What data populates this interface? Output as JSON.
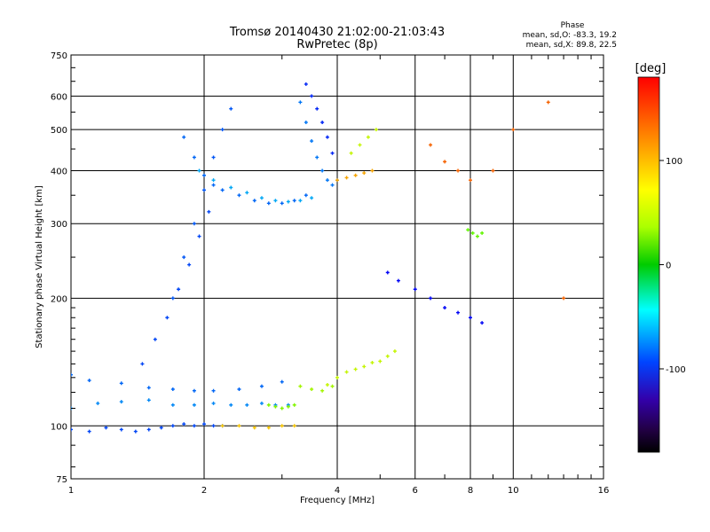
{
  "chart_data": {
    "type": "scatter",
    "title": "Tromsø 20140430 21:02:00-21:03:43",
    "subtitle": "RwPretec (8p)",
    "xlabel": "Frequency [MHz]",
    "ylabel": "Stationary phase Virtual Height [km]",
    "x_scale": "log",
    "y_scale": "log",
    "xlim": [
      1,
      16
    ],
    "ylim": [
      75,
      750
    ],
    "x_ticks": [
      1,
      2,
      4,
      6,
      8,
      10,
      16
    ],
    "y_ticks": [
      75,
      100,
      200,
      300,
      400,
      500,
      600,
      750
    ],
    "grid": true,
    "phase_info": {
      "heading": "Phase",
      "line1": "mean, sd,O: -83.3, 19.2",
      "line2": "mean, sd,X: 89.8, 22.5"
    },
    "colorbar": {
      "label": "[deg]",
      "range": [
        -180,
        180
      ],
      "ticks": [
        "100",
        "0",
        "-100"
      ],
      "tick_values": [
        100,
        0,
        -100
      ]
    },
    "series": [
      {
        "x": [
          1.0,
          1.1,
          1.2,
          1.3,
          1.4,
          1.5,
          1.6,
          1.7,
          1.8,
          1.9,
          2.0,
          2.1,
          2.2
        ],
        "y": [
          98,
          97,
          99,
          98,
          97,
          98,
          99,
          100,
          101,
          100,
          101,
          100,
          100
        ],
        "phase": -100
      },
      {
        "x": [
          1.0,
          1.15,
          1.3,
          1.5,
          1.7,
          1.9,
          2.1,
          2.3,
          2.5,
          2.7,
          2.9,
          3.1
        ],
        "y": [
          110,
          113,
          114,
          115,
          112,
          112,
          113,
          112,
          112,
          113,
          112,
          112
        ],
        "phase": -80
      },
      {
        "x": [
          1.0,
          1.1,
          1.3,
          1.5,
          1.7,
          1.9,
          2.1,
          2.4,
          2.7,
          3.0
        ],
        "y": [
          132,
          128,
          126,
          123,
          122,
          121,
          121,
          122,
          124,
          127
        ],
        "phase": -90
      },
      {
        "x": [
          1.45,
          1.55,
          1.65,
          1.75,
          1.85,
          1.95,
          2.05
        ],
        "y": [
          140,
          160,
          180,
          210,
          240,
          280,
          320
        ],
        "phase": -100
      },
      {
        "x": [
          1.7,
          1.8,
          1.9,
          2.0,
          2.1,
          2.2,
          2.3
        ],
        "y": [
          200,
          250,
          300,
          360,
          430,
          500,
          560
        ],
        "phase": -95
      },
      {
        "x": [
          1.8,
          1.9,
          2.0,
          2.1,
          2.2,
          2.4,
          2.6,
          2.8,
          3.0,
          3.2,
          3.4
        ],
        "y": [
          480,
          430,
          390,
          370,
          360,
          350,
          340,
          335,
          335,
          340,
          350
        ],
        "phase": -90
      },
      {
        "x": [
          1.95,
          2.1,
          2.3,
          2.5,
          2.7,
          2.9,
          3.1,
          3.3,
          3.5
        ],
        "y": [
          400,
          380,
          365,
          355,
          345,
          340,
          338,
          340,
          345
        ],
        "phase": -70
      },
      {
        "x": [
          3.4,
          3.5,
          3.6,
          3.7,
          3.8,
          3.9
        ],
        "y": [
          640,
          600,
          560,
          520,
          480,
          440
        ],
        "phase": -110
      },
      {
        "x": [
          3.3,
          3.4,
          3.5,
          3.6,
          3.7,
          3.8,
          3.9,
          4.0
        ],
        "y": [
          580,
          520,
          470,
          430,
          400,
          380,
          370,
          380
        ],
        "phase": -85
      },
      {
        "x": [
          2.2,
          2.4,
          2.6,
          2.8,
          3.0,
          3.2
        ],
        "y": [
          100,
          100,
          99,
          99,
          100,
          100
        ],
        "phase": 120
      },
      {
        "x": [
          2.8,
          2.9,
          3.0,
          3.1,
          3.2
        ],
        "y": [
          112,
          111,
          110,
          111,
          112
        ],
        "phase": 70
      },
      {
        "x": [
          3.3,
          3.5,
          3.7,
          3.9
        ],
        "y": [
          124,
          122,
          121,
          124
        ],
        "phase": 80
      },
      {
        "x": [
          3.8,
          4.0,
          4.2,
          4.4,
          4.6,
          4.8,
          5.0,
          5.2,
          5.4
        ],
        "y": [
          125,
          130,
          134,
          136,
          138,
          141,
          142,
          146,
          150
        ],
        "phase": 90
      },
      {
        "x": [
          4.0,
          4.2,
          4.4,
          4.6,
          4.8
        ],
        "y": [
          380,
          385,
          390,
          395,
          400
        ],
        "phase": 130
      },
      {
        "x": [
          4.3,
          4.5,
          4.7,
          4.9
        ],
        "y": [
          440,
          460,
          480,
          500
        ],
        "phase": 90
      },
      {
        "x": [
          7.9,
          8.1,
          8.3,
          8.5
        ],
        "y": [
          290,
          285,
          280,
          285
        ],
        "phase": 60
      },
      {
        "x": [
          6.5,
          7.0,
          7.5,
          8.0,
          9.0,
          10.0,
          12.0,
          13.0
        ],
        "y": [
          460,
          420,
          400,
          380,
          400,
          500,
          580,
          200
        ],
        "phase": 150
      },
      {
        "x": [
          5.2,
          5.5,
          6.0,
          6.5,
          7.0,
          7.5,
          8.0,
          8.5
        ],
        "y": [
          230,
          220,
          210,
          200,
          190,
          185,
          180,
          175
        ],
        "phase": -120
      }
    ]
  }
}
